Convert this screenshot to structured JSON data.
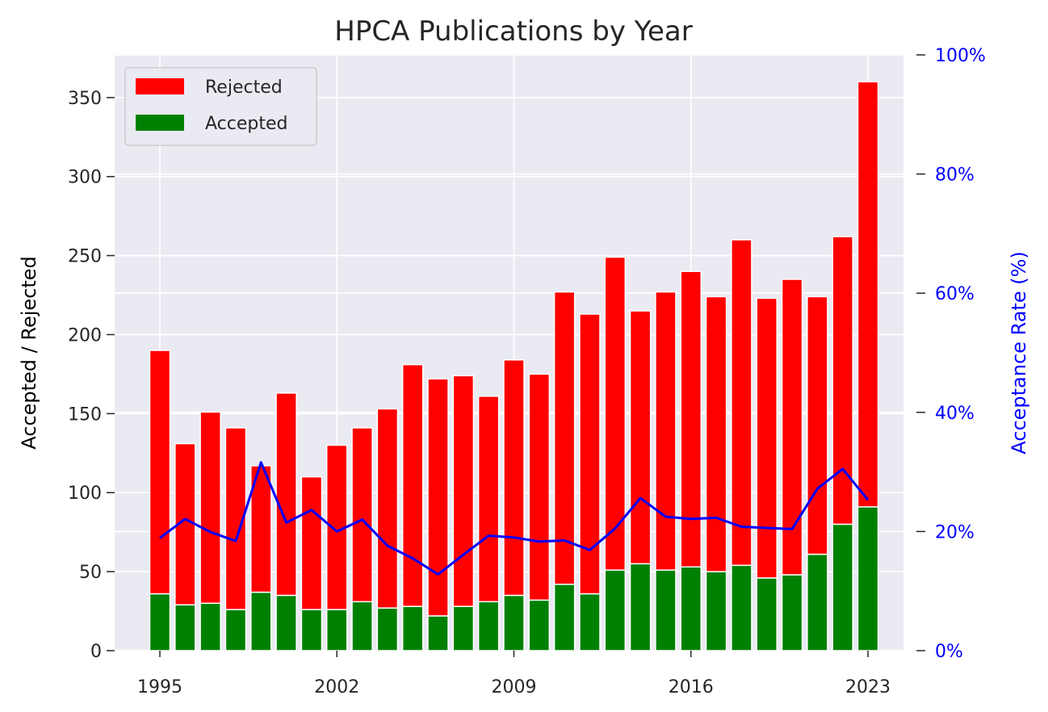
{
  "chart_data": {
    "type": "bar",
    "title": "HPCA Publications by Year",
    "ylabel": "Accepted / Rejected",
    "y2label": "Acceptance Rate (%)",
    "ylim": [
      0,
      377
    ],
    "y2lim": [
      0,
      100
    ],
    "yticks": [
      0,
      50,
      100,
      150,
      200,
      250,
      300,
      350
    ],
    "y2ticks": [
      "0%",
      "20%",
      "40%",
      "60%",
      "80%",
      "100%"
    ],
    "xtick_labels": [
      "1995",
      "2002",
      "2009",
      "2016",
      "2023"
    ],
    "years": [
      1995,
      1996,
      1997,
      1998,
      1999,
      2000,
      2001,
      2002,
      2003,
      2004,
      2005,
      2006,
      2007,
      2008,
      2009,
      2010,
      2011,
      2012,
      2013,
      2014,
      2015,
      2016,
      2017,
      2018,
      2019,
      2020,
      2021,
      2022,
      2023
    ],
    "stacked": true,
    "grid": true,
    "legend_position": "top-left",
    "series": [
      {
        "name": "Accepted",
        "color": "#008000",
        "values": [
          36,
          29,
          30,
          26,
          37,
          35,
          26,
          26,
          31,
          27,
          28,
          22,
          28,
          31,
          35,
          32,
          42,
          36,
          51,
          55,
          51,
          53,
          50,
          54,
          46,
          48,
          61,
          80,
          91
        ]
      },
      {
        "name": "Rejected",
        "color": "#ff0000",
        "values": [
          154,
          102,
          121,
          115,
          80,
          128,
          84,
          104,
          110,
          126,
          153,
          150,
          146,
          130,
          149,
          143,
          185,
          177,
          198,
          160,
          176,
          187,
          174,
          206,
          177,
          187,
          163,
          182,
          269
        ]
      }
    ],
    "line": {
      "axis": "right",
      "color": "#0000ff",
      "values": [
        18.9,
        22.1,
        19.9,
        18.4,
        31.6,
        21.5,
        23.6,
        20.0,
        22.0,
        17.6,
        15.5,
        12.8,
        16.1,
        19.3,
        19.0,
        18.3,
        18.5,
        16.9,
        20.5,
        25.6,
        22.5,
        22.1,
        22.3,
        20.8,
        20.6,
        20.4,
        27.2,
        30.5,
        25.3
      ]
    }
  }
}
